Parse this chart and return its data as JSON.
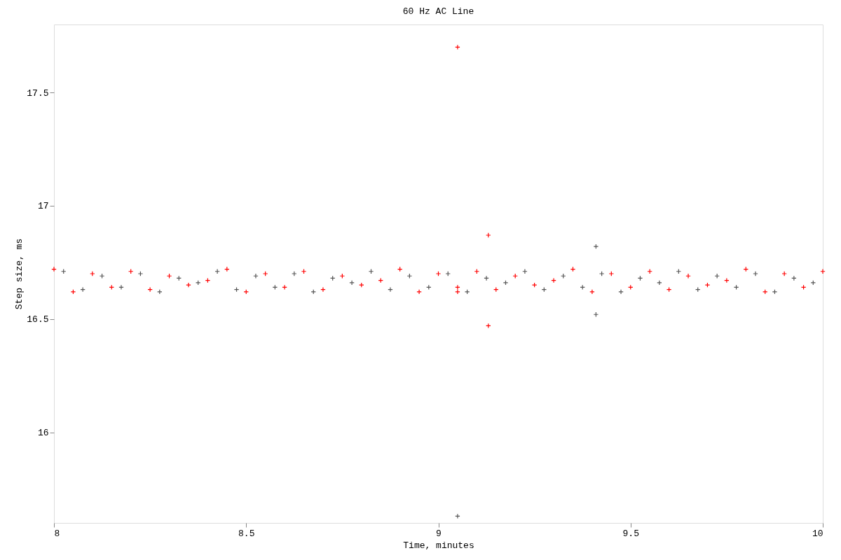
{
  "chart_data": {
    "type": "scatter",
    "title": "60 Hz AC Line",
    "xlabel": "Time, minutes",
    "ylabel": "Step size, ms",
    "xlim": [
      8,
      10
    ],
    "xticks": [
      8,
      8.5,
      9,
      9.5,
      10
    ],
    "ylim": [
      15.6,
      17.8
    ],
    "yticks": [
      16,
      16.5,
      17,
      17.5
    ],
    "grid": false,
    "legend": false,
    "marker": "cross",
    "series": [
      {
        "color": "#555555",
        "x": [
          8.025,
          8.075,
          8.125,
          8.175,
          8.225,
          8.275,
          8.325,
          8.375,
          8.425,
          8.475,
          8.525,
          8.575,
          8.625,
          8.675,
          8.725,
          8.775,
          8.825,
          8.875,
          8.925,
          8.975,
          9.025,
          9.075,
          9.125,
          9.175,
          9.225,
          9.275,
          9.325,
          9.375,
          9.425,
          9.475,
          9.525,
          9.575,
          9.625,
          9.675,
          9.725,
          9.775,
          9.825,
          9.875,
          9.925,
          9.975,
          9.05,
          9.41,
          9.41
        ],
        "values": [
          16.71,
          16.63,
          16.69,
          16.64,
          16.7,
          16.62,
          16.68,
          16.66,
          16.71,
          16.63,
          16.69,
          16.64,
          16.7,
          16.62,
          16.68,
          16.66,
          16.71,
          16.63,
          16.69,
          16.64,
          16.7,
          16.62,
          16.68,
          16.66,
          16.71,
          16.63,
          16.69,
          16.64,
          16.7,
          16.62,
          16.68,
          16.66,
          16.71,
          16.63,
          16.69,
          16.64,
          16.7,
          16.62,
          16.68,
          16.66,
          15.63,
          16.82,
          16.52
        ]
      },
      {
        "color": "#ff0000",
        "x": [
          8,
          8.05,
          8.1,
          8.15,
          8.2,
          8.25,
          8.3,
          8.35,
          8.4,
          8.45,
          8.5,
          8.55,
          8.6,
          8.65,
          8.7,
          8.75,
          8.8,
          8.85,
          8.9,
          8.95,
          9,
          9.05,
          9.1,
          9.15,
          9.2,
          9.25,
          9.3,
          9.35,
          9.4,
          9.45,
          9.5,
          9.55,
          9.6,
          9.65,
          9.7,
          9.75,
          9.8,
          9.85,
          9.9,
          9.95,
          10,
          9.05,
          9.05,
          9.13,
          9.13
        ],
        "values": [
          16.72,
          16.62,
          16.7,
          16.64,
          16.71,
          16.63,
          16.69,
          16.65,
          16.67,
          16.72,
          16.62,
          16.7,
          16.64,
          16.71,
          16.63,
          16.69,
          16.65,
          16.67,
          16.72,
          16.62,
          16.7,
          16.64,
          16.71,
          16.63,
          16.69,
          16.65,
          16.67,
          16.72,
          16.62,
          16.7,
          16.64,
          16.71,
          16.63,
          16.69,
          16.65,
          16.67,
          16.72,
          16.62,
          16.7,
          16.64,
          16.71,
          17.7,
          16.62,
          16.87,
          16.47
        ]
      }
    ]
  }
}
